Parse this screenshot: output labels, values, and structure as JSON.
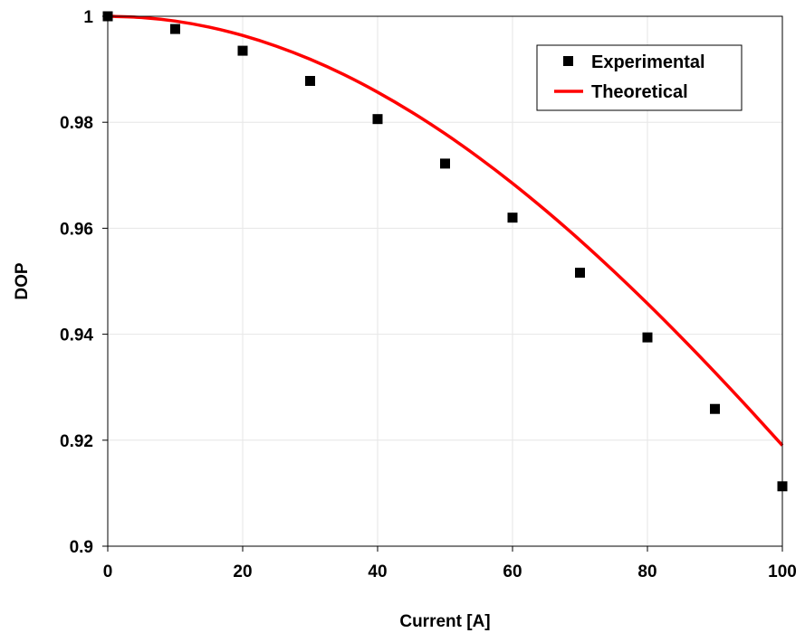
{
  "chart_data": {
    "type": "scatter",
    "title": "",
    "xlabel": "Current [A]",
    "ylabel": "DOP",
    "xlim": [
      0,
      100
    ],
    "ylim": [
      0.9,
      1.0
    ],
    "xticks": [
      0,
      20,
      40,
      60,
      80,
      100
    ],
    "yticks": [
      0.9,
      0.92,
      0.94,
      0.96,
      0.98,
      1.0
    ],
    "xtick_labels": [
      "0",
      "20",
      "40",
      "60",
      "80",
      "100"
    ],
    "ytick_labels": [
      "0.9",
      "0.92",
      "0.94",
      "0.96",
      "0.98",
      "1"
    ],
    "grid": true,
    "legend_position": "top-right",
    "series": [
      {
        "name": "Experimental",
        "kind": "scatter",
        "marker": "square",
        "color": "#000000",
        "x": [
          0,
          10,
          20,
          30,
          40,
          50,
          60,
          70,
          80,
          90,
          100
        ],
        "y": [
          1.0,
          0.9976,
          0.9935,
          0.9878,
          0.9806,
          0.9722,
          0.962,
          0.9516,
          0.9394,
          0.9259,
          0.9113
        ]
      },
      {
        "name": "Theoretical",
        "kind": "line",
        "color": "#ff0000",
        "x": [
          0,
          5,
          10,
          15,
          20,
          25,
          30,
          35,
          40,
          45,
          50,
          55,
          60,
          65,
          70,
          75,
          80,
          85,
          90,
          95,
          100
        ],
        "y": [
          1.0,
          0.99977,
          0.99909,
          0.99796,
          0.99638,
          0.99435,
          0.99189,
          0.989,
          0.98568,
          0.98196,
          0.97784,
          0.97334,
          0.96848,
          0.96327,
          0.95774,
          0.9519,
          0.94579,
          0.93942,
          0.93282,
          0.92601,
          0.91902
        ]
      }
    ]
  }
}
